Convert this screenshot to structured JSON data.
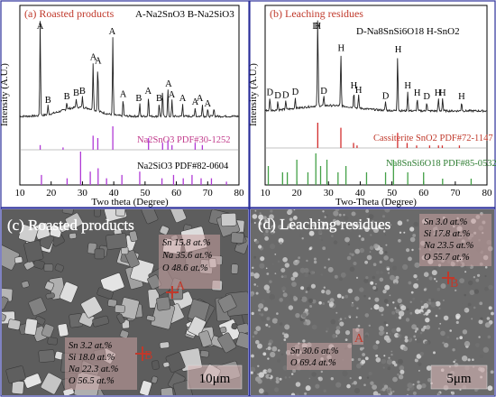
{
  "colors": {
    "panel_border": "#2b2f9a",
    "panel_label": "#c0392b",
    "pdf_purple": "#b03ad6",
    "pdf_pink_text": "#c0398a",
    "pdf_red": "#d32f2f",
    "pdf_green": "#43a047",
    "sem_label_red": "#c0392b",
    "pattern_black": "#222222"
  },
  "panels": {
    "a": {
      "label": "(a) Roasted products",
      "legend": "A-Na2SnO3   B-Na2SiO3",
      "ylabel": "Intensity (A.U.)",
      "xlabel": "Two theta (Degree)",
      "xticks": [
        "10",
        "20",
        "30",
        "40",
        "50",
        "60",
        "70",
        "80"
      ],
      "pdf1": "Na2SnO3 PDF#30-1252",
      "pdf2": "Na2SiO3 PDF#82-0604",
      "peak_labels": [
        {
          "t": "A",
          "x": 16.5
        },
        {
          "t": "B",
          "x": 19
        },
        {
          "t": "B",
          "x": 25
        },
        {
          "t": "B",
          "x": 28
        },
        {
          "t": "B",
          "x": 30
        },
        {
          "t": "A",
          "x": 33.5
        },
        {
          "t": "A",
          "x": 35
        },
        {
          "t": "A",
          "x": 39.5
        },
        {
          "t": "A",
          "x": 43
        },
        {
          "t": "B",
          "x": 48
        },
        {
          "t": "A",
          "x": 51
        },
        {
          "t": "B",
          "x": 54.5
        },
        {
          "t": "A",
          "x": 57.5
        },
        {
          "t": "A",
          "x": 58.5
        },
        {
          "t": "A",
          "x": 62
        },
        {
          "t": "A",
          "x": 66
        },
        {
          "t": "A",
          "x": 67.5
        },
        {
          "t": "A",
          "x": 70
        }
      ]
    },
    "b": {
      "label": "(b) Leaching residues",
      "legend": "D-Na8SnSi6O18   H-SnO2",
      "ylabel": "Intensity (A.U.)",
      "xlabel": "Two-Theta (Degree)",
      "xticks": [
        "10",
        "20",
        "30",
        "40",
        "50",
        "60",
        "70",
        "80"
      ],
      "pdf1": "Cassiterite SnO2 PDF#72-1147",
      "pdf2": "Na8SnSi6O18 PDF#85-0532",
      "peak_labels": [
        {
          "t": "H",
          "x": 26.6
        },
        {
          "t": "D",
          "x": 11.5
        },
        {
          "t": "D",
          "x": 14
        },
        {
          "t": "D",
          "x": 16.5
        },
        {
          "t": "D",
          "x": 19.5
        },
        {
          "t": "D",
          "x": 26
        },
        {
          "t": "D",
          "x": 28.5
        },
        {
          "t": "H",
          "x": 34
        },
        {
          "t": "H",
          "x": 38
        },
        {
          "t": "H",
          "x": 39.5
        },
        {
          "t": "D",
          "x": 48
        },
        {
          "t": "H",
          "x": 52
        },
        {
          "t": "H",
          "x": 55
        },
        {
          "t": "H",
          "x": 58
        },
        {
          "t": "D",
          "x": 61
        },
        {
          "t": "H",
          "x": 64.5
        },
        {
          "t": "H",
          "x": 66
        },
        {
          "t": "H",
          "x": 72
        }
      ]
    },
    "c": {
      "label": "(c) Roasted products",
      "point_a_label": "A",
      "point_b_label": "B",
      "comp_a": [
        "Sn 15.8 at.%",
        "Na 35.6 at.%",
        "O   48.6 at.%"
      ],
      "comp_b": [
        "Sn 3.2 at.%",
        "Si 18.0 at.%",
        "Na 22.3 at.%",
        "O  56.5 at.%"
      ],
      "scale": "10μm"
    },
    "d": {
      "label": "(d) Leaching residues",
      "point_a_label": "A",
      "point_b_label": "B",
      "comp_b": [
        "Sn  3.0 at.%",
        "Si  17.8 at.%",
        "Na 23.5 at.%",
        "O   55.7 at.%"
      ],
      "comp_a": [
        "Sn 30.6 at.%",
        "O  69.4 at.%"
      ],
      "scale": "5μm"
    }
  },
  "chart_data": [
    {
      "type": "line",
      "title": "(a) Roasted products",
      "xlabel": "Two theta (Degree)",
      "ylabel": "Intensity (A.U.)",
      "xlim": [
        10,
        80
      ],
      "series": [
        {
          "name": "Na2SnO3 PDF#30-1252",
          "x": [
            16.5,
            23.8,
            33.4,
            34.9,
            39.7,
            51.1,
            55.6,
            57.3,
            58.6,
            66.0,
            68.3
          ],
          "y": [
            2,
            1,
            6,
            5,
            10,
            5,
            3,
            4,
            2,
            3,
            2
          ]
        },
        {
          "name": "Na2SiO3 PDF#82-0604",
          "x": [
            16.9,
            25.1,
            29.4,
            32.5,
            35.0,
            37.7,
            42.6,
            48.3,
            55.4,
            59.1,
            62.2,
            65.0,
            67.9,
            71.2,
            76.0
          ],
          "y": [
            3,
            2,
            10,
            4,
            5,
            2,
            3,
            4,
            2,
            3,
            2,
            3,
            2,
            2,
            1
          ]
        }
      ]
    },
    {
      "type": "line",
      "title": "(b) Leaching residues",
      "xlabel": "Two-Theta (Degree)",
      "ylabel": "Intensity (A.U.)",
      "xlim": [
        10,
        80
      ],
      "series": [
        {
          "name": "Cassiterite SnO2 PDF#72-1147",
          "x": [
            26.6,
            33.9,
            37.9,
            39.0,
            51.8,
            54.8,
            57.8,
            61.9,
            64.7,
            65.9,
            71.3
          ],
          "y": [
            10,
            8,
            2,
            1,
            6,
            2,
            1,
            1,
            1,
            1,
            1
          ]
        },
        {
          "name": "Na8SnSi6O18 PDF#85-0532",
          "x": [
            11.0,
            15.5,
            17.0,
            20.0,
            23.5,
            26.0,
            27.5,
            29.5,
            33.0,
            35.5,
            42.0,
            48.0,
            50.5,
            55.0,
            60.0,
            66.0,
            75.0
          ],
          "y": [
            3,
            2,
            2,
            4,
            2,
            5,
            3,
            4,
            2,
            3,
            2,
            2,
            4,
            2,
            2,
            1,
            1
          ]
        }
      ]
    }
  ]
}
